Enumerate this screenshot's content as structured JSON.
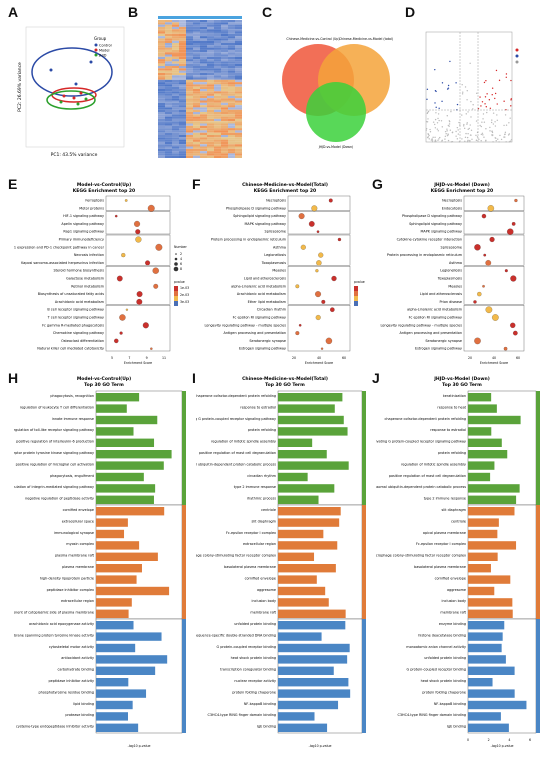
{
  "panels": {
    "A": "A",
    "B": "B",
    "C": "C",
    "D": "D",
    "E": "E",
    "F": "F",
    "G": "G",
    "H": "H",
    "I": "I",
    "J": "J"
  },
  "pca": {
    "legend_title": "Group",
    "groups": [
      "Control",
      "Model",
      "JHJD"
    ],
    "group_colors": [
      "#2b4aa6",
      "#d62728",
      "#2ca02c"
    ],
    "xlabel": "PC1: 43.5% variance",
    "ylabel": "PC2: 26.69% variance"
  },
  "venn": {
    "labels": [
      "Chinese-Medicine-vs-Control (Up)",
      "Chinese-Medicine-vs-Model (total)",
      "JHJD-vs-Model (Down)"
    ],
    "colors": [
      "#f0563a",
      "#f5a33a",
      "#3bd13b"
    ]
  },
  "kegg_e": {
    "title": "Model-vs-Control(Up)",
    "subtitle": "KEGG Enrichment top 20",
    "xlabel": "Enrichment Score",
    "xticks": [
      "5",
      "7",
      "9",
      "11"
    ],
    "size_title": "Number",
    "sizes": [
      "2",
      "4",
      "6",
      "8"
    ],
    "color_title": "pvalue",
    "color_ticks": [
      "1e-03",
      "2e-03",
      "3e-03"
    ],
    "terms": [
      "Ferroptosis",
      "Motor proteins",
      "HIF-1 signaling pathway",
      "Apelin signaling pathway",
      "Rap1 signaling pathway",
      "Primary immunodeficiency",
      "PD-L1 expression and PD-1 checkpoint pathway in cancer",
      "Necrosis infection",
      "Kaposi sarcoma-associated herpesvirus infection",
      "Steroid hormone biosynthesis",
      "Galactose metabolism",
      "Retinol metabolism",
      "Biosynthesis of unsaturated fatty acids",
      "Arachidonic acid metabolism",
      "B cell receptor signaling pathway",
      "T cell receptor signaling pathway",
      "Fc gamma R-mediated phagocytosis",
      "Chemokine signaling pathway",
      "Osteoclast differentiation",
      "Natural killer cell mediated cytotoxicity"
    ]
  },
  "kegg_f": {
    "title": "Chinese-Medicine-vs-Model(Total)",
    "subtitle": "KEGG Enrichment top 20",
    "xlabel": "Enrichment Score",
    "xticks": [
      "20",
      "40",
      "60"
    ],
    "color_title": "pvalue",
    "terms": [
      "Necroptosis",
      "Phospholipase D signaling pathway",
      "Sphingolipid signaling pathway",
      "MAPK signaling pathway",
      "Spliceosome",
      "Protein processing in endoplasmic reticulum",
      "Asthma",
      "Legionellosis",
      "Toxoplasmosis",
      "Measles",
      "Lipid and atherosclerosis",
      "alpha-Linolenic acid metabolism",
      "Arachidonic acid metabolism",
      "Ether lipid metabolism",
      "Circadian rhythm",
      "Fc epsilon RI signaling pathway",
      "Longevity regulating pathway - multiple species",
      "Antigen processing and presentation",
      "Serotonergic synapse",
      "Estrogen signaling pathway"
    ]
  },
  "kegg_g": {
    "title": "JHJD-vs-Model (Down)",
    "subtitle": "KEGG Enrichment top 20",
    "xlabel": "Enrichment Score",
    "xticks": [
      "20",
      "40",
      "60"
    ],
    "terms": [
      "Necroptosis",
      "Endocytosis",
      "Phospholipase D signaling pathway",
      "Sphingolipid signaling pathway",
      "MAPK signaling pathway",
      "Cytokine-cytokine receptor interaction",
      "Spliceosome",
      "Protein processing in endoplasmic reticulum",
      "Asthma",
      "Legionellosis",
      "Toxoplasmosis",
      "Measles",
      "Lipid and atherosclerosis",
      "Prion disease",
      "alpha-Linolenic acid metabolism",
      "Fc epsilon RI signaling pathway",
      "Longevity regulating pathway - multiple species",
      "Antigen processing and presentation",
      "Serotonergic synapse",
      "Estrogen signaling pathway"
    ]
  },
  "go_h": {
    "title": "Model-vs-Control(Up)",
    "subtitle": "Top 30 GO Term",
    "xlabel": "-log10 p-value",
    "terms": [
      "phagocytosis, recognition",
      "regulation of leukocyte T cell differentiation",
      "innate immune response",
      "negative regulation of toll-like receptor signaling pathway",
      "positive regulation of interleukin-6 production",
      "transmembrane receptor protein tyrosine kinase signaling pathway",
      "positive regulation of microglial cell activation",
      "phagocytosis, engulfment",
      "regulation of integrin-mediated signaling pathway",
      "negative regulation of peptidase activity",
      "cornified envelope",
      "extracellular space",
      "immunological synapse",
      "myosin complex",
      "plasma membrane raft",
      "plasma membrane",
      "high-density lipoprotein particle",
      "peptidase inhibitor complex",
      "extracellular region",
      "extrinsic component of cytoplasmic side of plasma membrane",
      "arachidonic acid epoxygenase activity",
      "non-membrane spanning protein tyrosine kinase activity",
      "cytoskeletal motor activity",
      "antioxidant activity",
      "carbohydrate binding",
      "peptidase inhibitor activity",
      "phosphotyrosine residue binding",
      "lipid binding",
      "protease binding",
      "cysteine-type endopeptidase inhibitor activity"
    ]
  },
  "go_i": {
    "title": "Chinese-Medicine-vs-Model(Total)",
    "subtitle": "Top 30 GO Term",
    "xlabel": "-log10 p-value",
    "terms": [
      "chaperone cofactor-dependent protein refolding",
      "response to estradiol",
      "protein kinase C-activating G protein-coupled receptor signaling pathway",
      "protein refolding",
      "regulation of mitotic spindle assembly",
      "positive regulation of mast cell degranulation",
      "positive regulation of proteasomal ubiquitin-dependent protein catabolic process",
      "circadian rhythm",
      "type 2 immune response",
      "rhythmic process",
      "centriole",
      "slit diaphragm",
      "Fc-epsilon receptor I complex",
      "extracellular region",
      "granulocyte macrophage colony-stimulating factor receptor complex",
      "basolateral plasma membrane",
      "cornified envelope",
      "aggresome",
      "inclusion body",
      "membrane raft",
      "unfolded protein binding",
      "sequence-specific double-stranded DNA binding",
      "G protein-coupled receptor binding",
      "heat shock protein binding",
      "transcription coregulator binding",
      "nuclear receptor activity",
      "protein folding chaperone",
      "NF-kappaB binding",
      "C3HC4-type RING finger domain binding",
      "IgE binding"
    ]
  },
  "go_j": {
    "title": "JHJD-vs-Model (Down)",
    "subtitle": "Top 30 GO Term",
    "xlabel": "-log10 p-value",
    "terms": [
      "keratinization",
      "response to heat",
      "chaperone cofactor-dependent protein refolding",
      "response to estradiol",
      "protein kinase C-activating G protein-coupled receptor signaling pathway",
      "protein refolding",
      "regulation of mitotic spindle assembly",
      "positive regulation of mast cell degranulation",
      "positive regulation of proteasomal ubiquitin-dependent protein catabolic process",
      "type 2 immune response",
      "slit diaphragm",
      "centriole",
      "apical plasma membrane",
      "Fc-epsilon receptor I complex",
      "granulocyte macrophage colony-stimulating factor receptor complex",
      "basolateral plasma membrane",
      "cornified envelope",
      "aggresome",
      "inclusion body",
      "membrane raft",
      "enzyme binding",
      "histone deacetylase binding",
      "monoatomic anion channel activity",
      "unfolded protein binding",
      "G protein-coupled receptor binding",
      "heat shock protein binding",
      "protein folding chaperone",
      "NF-kappaB binding",
      "C3HC4-type RING finger domain binding",
      "IgE binding"
    ],
    "xticks": [
      "0",
      "2",
      "4",
      "6"
    ]
  }
}
